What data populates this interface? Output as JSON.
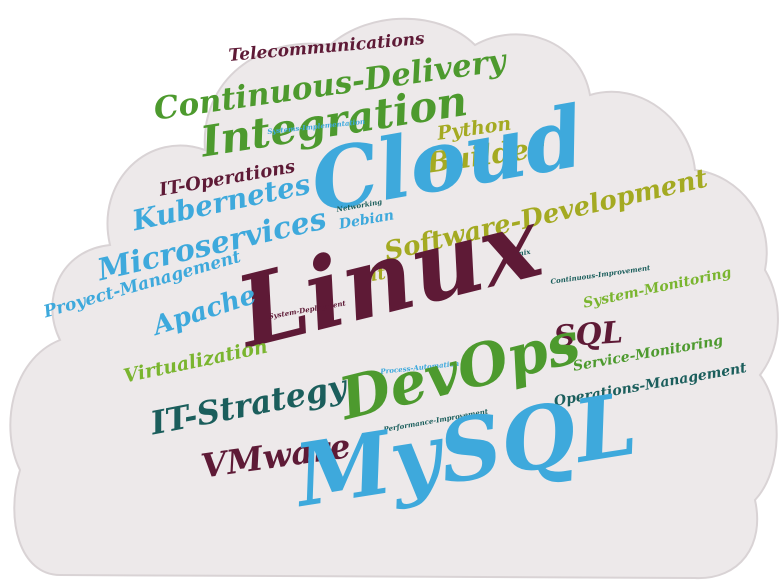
{
  "palette": {
    "cloud_fill": "#ede9ea",
    "cloud_stroke": "#d9d3d5",
    "maroon": "#5e1a36",
    "green": "#4d9a2e",
    "blue": "#3ea9dc",
    "olive": "#a4aa22",
    "teal": "#1b5e5c",
    "lime": "#7ab52f"
  },
  "words": [
    "Telecommunications",
    "Continuous-Delivery",
    "Integration",
    "Python",
    "Systems-Implementation",
    "Builder",
    "IT-Operations",
    "Cloud",
    "Kubernetes",
    "Networking",
    "Debian",
    "Software-Development",
    "Microservices",
    "Unix",
    "Git",
    "Continuous-Improvement",
    "Proyect-Management",
    "Linux",
    "System-Monitoring",
    "Apache",
    "System-Deployment",
    "SQL",
    "Virtualization",
    "Process-Automation",
    "Service-Monitoring",
    "DevOps",
    "Operations-Management",
    "IT-Strategy",
    "Performance-Improvement",
    "VMware",
    "MySQL"
  ]
}
